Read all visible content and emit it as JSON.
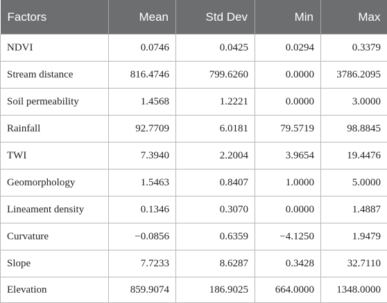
{
  "table": {
    "headers": [
      "Factors",
      "Mean",
      "Std Dev",
      "Min",
      "Max"
    ],
    "rows": [
      [
        "NDVI",
        "0.0746",
        "0.0425",
        "0.0294",
        "0.3379"
      ],
      [
        "Stream distance",
        "816.4746",
        "799.6260",
        "0.0000",
        "3786.2095"
      ],
      [
        "Soil permeability",
        "1.4568",
        "1.2221",
        "0.0000",
        "3.0000"
      ],
      [
        "Rainfall",
        "92.7709",
        "6.0181",
        "79.5719",
        "98.8845"
      ],
      [
        "TWI",
        "7.3940",
        "2.2004",
        "3.9654",
        "19.4476"
      ],
      [
        "Geomorphology",
        "1.5463",
        "0.8407",
        "1.0000",
        "5.0000"
      ],
      [
        "Lineament density",
        "0.1346",
        "0.3070",
        "0.0000",
        "1.4887"
      ],
      [
        "Curvature",
        "−0.0856",
        "0.6359",
        "−4.1250",
        "1.9479"
      ],
      [
        "Slope",
        "7.7233",
        "8.6287",
        "0.3428",
        "32.7110"
      ],
      [
        "Elevation",
        "859.9074",
        "186.9025",
        "664.0000",
        "1348.0000"
      ]
    ]
  }
}
